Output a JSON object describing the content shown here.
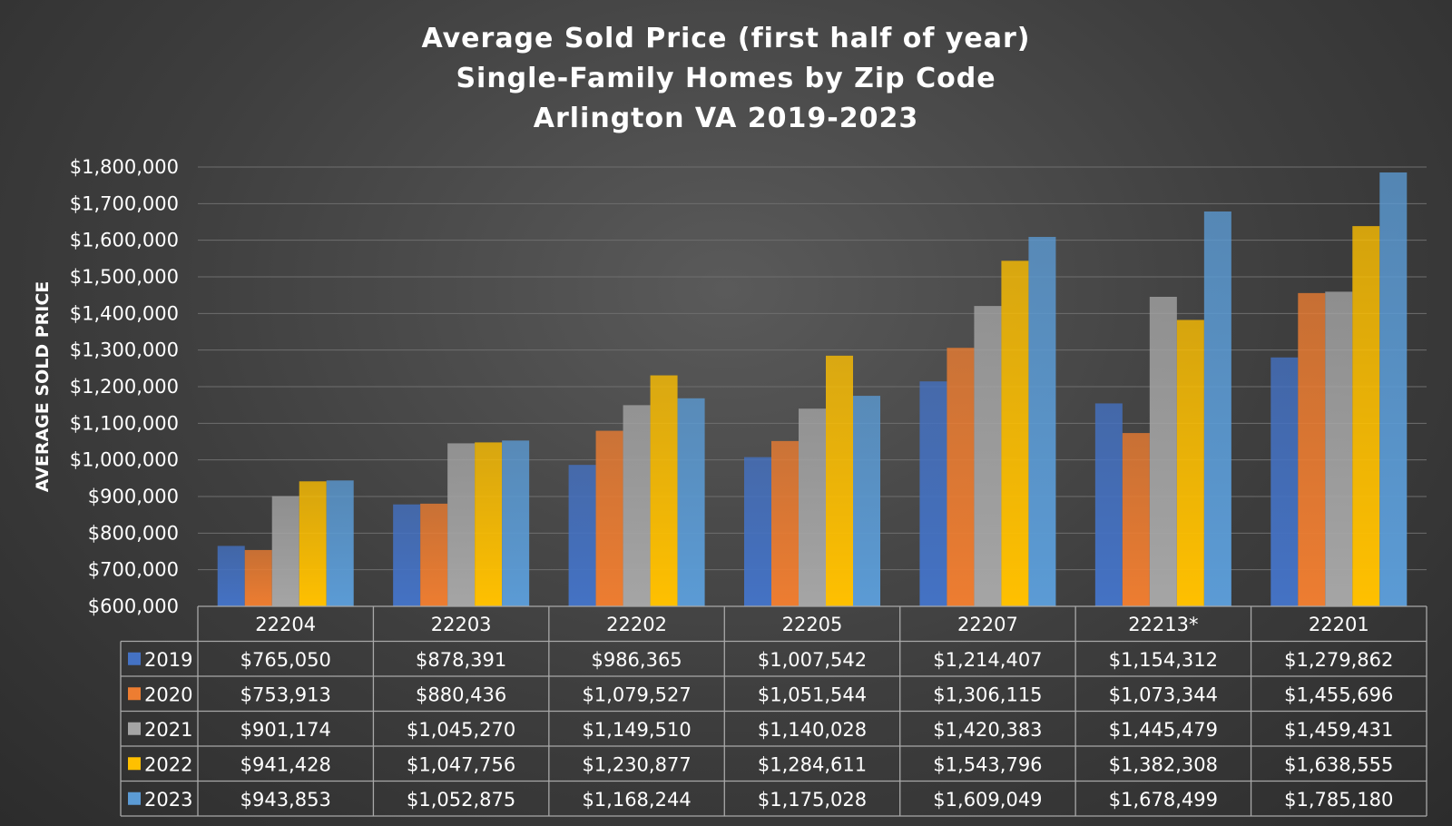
{
  "chart_data": {
    "type": "bar",
    "title": [
      "Average Sold Price (first half of year)",
      "Single-Family Homes by Zip Code",
      "Arlington VA 2019-2023"
    ],
    "xlabel": "",
    "ylabel": "AVERAGE SOLD PRICE",
    "ylim": [
      600000,
      1800000
    ],
    "ytick_step": 100000,
    "yticks": [
      "$600,000",
      "$700,000",
      "$800,000",
      "$900,000",
      "$1,000,000",
      "$1,100,000",
      "$1,200,000",
      "$1,300,000",
      "$1,400,000",
      "$1,500,000",
      "$1,600,000",
      "$1,700,000",
      "$1,800,000"
    ],
    "grid": true,
    "legend": "data-table",
    "categories": [
      "22204",
      "22203",
      "22202",
      "22205",
      "22207",
      "22213*",
      "22201"
    ],
    "series": [
      {
        "name": "2019",
        "color": "#4472C4",
        "values": [
          765050,
          878391,
          986365,
          1007542,
          1214407,
          1154312,
          1279862
        ],
        "labels": [
          "$765,050",
          "$878,391",
          "$986,365",
          "$1,007,542",
          "$1,214,407",
          "$1,154,312",
          "$1,279,862"
        ]
      },
      {
        "name": "2020",
        "color": "#ED7D31",
        "values": [
          753913,
          880436,
          1079527,
          1051544,
          1306115,
          1073344,
          1455696
        ],
        "labels": [
          "$753,913",
          "$880,436",
          "$1,079,527",
          "$1,051,544",
          "$1,306,115",
          "$1,073,344",
          "$1,455,696"
        ]
      },
      {
        "name": "2021",
        "color": "#A5A5A5",
        "values": [
          901174,
          1045270,
          1149510,
          1140028,
          1420383,
          1445479,
          1459431
        ],
        "labels": [
          "$901,174",
          "$1,045,270",
          "$1,149,510",
          "$1,140,028",
          "$1,420,383",
          "$1,445,479",
          "$1,459,431"
        ]
      },
      {
        "name": "2022",
        "color": "#FFC000",
        "values": [
          941428,
          1047756,
          1230877,
          1284611,
          1543796,
          1382308,
          1638555
        ],
        "labels": [
          "$941,428",
          "$1,047,756",
          "$1,230,877",
          "$1,284,611",
          "$1,543,796",
          "$1,382,308",
          "$1,638,555"
        ]
      },
      {
        "name": "2023",
        "color": "#5B9BD5",
        "values": [
          943853,
          1052875,
          1168244,
          1175028,
          1609049,
          1678499,
          1785180
        ],
        "labels": [
          "$943,853",
          "$1,052,875",
          "$1,168,244",
          "$1,175,028",
          "$1,609,049",
          "$1,678,499",
          "$1,785,180"
        ]
      }
    ]
  }
}
